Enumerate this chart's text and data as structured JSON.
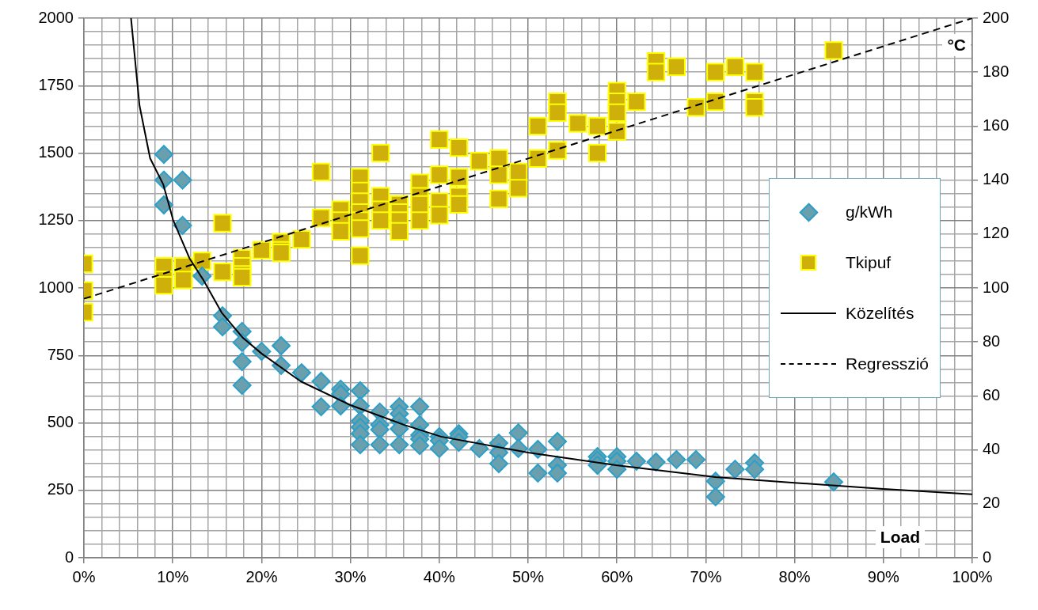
{
  "chart_data": {
    "type": "scatter",
    "xlabel": "Load",
    "y2label": "°C",
    "legend": "right",
    "grid": true,
    "xlim": [
      0,
      1
    ],
    "ylim": [
      0,
      2000
    ],
    "y2lim": [
      0,
      200
    ],
    "xticks": [
      {
        "value": 0,
        "label": "0%"
      },
      {
        "value": 0.02,
        "label": null
      },
      {
        "value": 0.04,
        "label": null
      },
      {
        "value": 0.06,
        "label": null
      },
      {
        "value": 0.08,
        "label": null
      },
      {
        "value": 0.1,
        "label": "10%"
      },
      {
        "value": 0.12,
        "label": null
      },
      {
        "value": 0.14,
        "label": null
      },
      {
        "value": 0.16,
        "label": null
      },
      {
        "value": 0.18,
        "label": null
      },
      {
        "value": 0.2,
        "label": "20%"
      },
      {
        "value": 0.22,
        "label": null
      },
      {
        "value": 0.24,
        "label": null
      },
      {
        "value": 0.26,
        "label": null
      },
      {
        "value": 0.28,
        "label": null
      },
      {
        "value": 0.3,
        "label": "30%"
      },
      {
        "value": 0.32,
        "label": null
      },
      {
        "value": 0.34,
        "label": null
      },
      {
        "value": 0.36,
        "label": null
      },
      {
        "value": 0.38,
        "label": null
      },
      {
        "value": 0.4,
        "label": "40%"
      },
      {
        "value": 0.42,
        "label": null
      },
      {
        "value": 0.44,
        "label": null
      },
      {
        "value": 0.46,
        "label": null
      },
      {
        "value": 0.48,
        "label": null
      },
      {
        "value": 0.5,
        "label": "50%"
      },
      {
        "value": 0.52,
        "label": null
      },
      {
        "value": 0.54,
        "label": null
      },
      {
        "value": 0.56,
        "label": null
      },
      {
        "value": 0.58,
        "label": null
      },
      {
        "value": 0.6,
        "label": "60%"
      },
      {
        "value": 0.62,
        "label": null
      },
      {
        "value": 0.64,
        "label": null
      },
      {
        "value": 0.66,
        "label": null
      },
      {
        "value": 0.68,
        "label": null
      },
      {
        "value": 0.7,
        "label": "70%"
      },
      {
        "value": 0.72,
        "label": null
      },
      {
        "value": 0.74,
        "label": null
      },
      {
        "value": 0.76,
        "label": null
      },
      {
        "value": 0.78,
        "label": null
      },
      {
        "value": 0.8,
        "label": "80%"
      },
      {
        "value": 0.82,
        "label": null
      },
      {
        "value": 0.84,
        "label": null
      },
      {
        "value": 0.86,
        "label": null
      },
      {
        "value": 0.88,
        "label": null
      },
      {
        "value": 0.9,
        "label": "90%"
      },
      {
        "value": 0.92,
        "label": null
      },
      {
        "value": 0.94,
        "label": null
      },
      {
        "value": 0.96,
        "label": null
      },
      {
        "value": 0.98,
        "label": null
      },
      {
        "value": 1,
        "label": "100%"
      }
    ],
    "yticks": [
      0,
      {
        "value": 50,
        "label": null
      },
      {
        "value": 100,
        "label": null
      },
      {
        "value": 150,
        "label": null
      },
      {
        "value": 200,
        "label": null
      },
      250,
      {
        "value": 300,
        "label": null
      },
      {
        "value": 350,
        "label": null
      },
      {
        "value": 400,
        "label": null
      },
      {
        "value": 450,
        "label": null
      },
      500,
      {
        "value": 550,
        "label": null
      },
      {
        "value": 600,
        "label": null
      },
      {
        "value": 650,
        "label": null
      },
      {
        "value": 700,
        "label": null
      },
      750,
      {
        "value": 800,
        "label": null
      },
      {
        "value": 850,
        "label": null
      },
      {
        "value": 900,
        "label": null
      },
      {
        "value": 950,
        "label": null
      },
      1000,
      {
        "value": 1050,
        "label": null
      },
      {
        "value": 1100,
        "label": null
      },
      {
        "value": 1150,
        "label": null
      },
      {
        "value": 1200,
        "label": null
      },
      1250,
      {
        "value": 1300,
        "label": null
      },
      {
        "value": 1350,
        "label": null
      },
      {
        "value": 1400,
        "label": null
      },
      {
        "value": 1450,
        "label": null
      },
      1500,
      {
        "value": 1550,
        "label": null
      },
      {
        "value": 1600,
        "label": null
      },
      {
        "value": 1650,
        "label": null
      },
      {
        "value": 1700,
        "label": null
      },
      1750,
      {
        "value": 1800,
        "label": null
      },
      {
        "value": 1850,
        "label": null
      },
      {
        "value": 1900,
        "label": null
      },
      {
        "value": 1950,
        "label": null
      },
      2000
    ],
    "y2ticks": [
      0,
      20,
      40,
      60,
      80,
      100,
      120,
      140,
      160,
      180,
      200
    ],
    "series": [
      {
        "name": "g/kWh",
        "marker": "diamond",
        "color": "#6a9fae",
        "x": [
          0.09,
          0.09,
          0.09,
          0.111,
          0.111,
          0.133,
          0.156,
          0.156,
          0.178,
          0.178,
          0.178,
          0.178,
          0.2,
          0.222,
          0.222,
          0.245,
          0.267,
          0.267,
          0.289,
          0.289,
          0.289,
          0.311,
          0.311,
          0.311,
          0.311,
          0.311,
          0.311,
          0.333,
          0.333,
          0.333,
          0.333,
          0.355,
          0.355,
          0.355,
          0.355,
          0.355,
          0.378,
          0.378,
          0.378,
          0.378,
          0.378,
          0.4,
          0.4,
          0.4,
          0.422,
          0.422,
          0.422,
          0.445,
          0.467,
          0.467,
          0.467,
          0.489,
          0.489,
          0.511,
          0.511,
          0.533,
          0.533,
          0.533,
          0.578,
          0.578,
          0.578,
          0.6,
          0.6,
          0.6,
          0.622,
          0.644,
          0.667,
          0.689,
          0.711,
          0.711,
          0.733,
          0.755,
          0.755,
          0.844
        ],
        "values": [
          1495,
          1400,
          1308,
          1400,
          1232,
          1044,
          897,
          856,
          839,
          798,
          727,
          639,
          765,
          786,
          713,
          686,
          654,
          560,
          625,
          607,
          563,
          619,
          563,
          507,
          484,
          460,
          419,
          540,
          493,
          475,
          419,
          560,
          534,
          507,
          478,
          419,
          560,
          493,
          455,
          440,
          416,
          449,
          434,
          405,
          460,
          449,
          428,
          405,
          425,
          390,
          349,
          463,
          405,
          402,
          314,
          431,
          343,
          314,
          375,
          361,
          343,
          375,
          358,
          328,
          358,
          355,
          364,
          364,
          284,
          226,
          328,
          352,
          328,
          281
        ]
      },
      {
        "name": "Tkipuf",
        "marker": "square",
        "axis": "y2",
        "color": "#cfb00a",
        "x": [
          0,
          0,
          0,
          0.09,
          0.09,
          0.09,
          0.112,
          0.112,
          0.133,
          0.156,
          0.156,
          0.178,
          0.178,
          0.178,
          0.178,
          0.2,
          0.222,
          0.222,
          0.222,
          0.245,
          0.267,
          0.267,
          0.289,
          0.289,
          0.289,
          0.311,
          0.311,
          0.311,
          0.311,
          0.311,
          0.311,
          0.311,
          0.334,
          0.334,
          0.334,
          0.334,
          0.355,
          0.355,
          0.355,
          0.355,
          0.378,
          0.378,
          0.378,
          0.378,
          0.4,
          0.4,
          0.4,
          0.4,
          0.422,
          0.422,
          0.422,
          0.422,
          0.445,
          0.467,
          0.467,
          0.467,
          0.489,
          0.489,
          0.511,
          0.511,
          0.533,
          0.533,
          0.533,
          0.556,
          0.578,
          0.578,
          0.6,
          0.6,
          0.6,
          0.6,
          0.622,
          0.644,
          0.644,
          0.667,
          0.689,
          0.711,
          0.711,
          0.733,
          0.755,
          0.755,
          0.755,
          0.844
        ],
        "values": [
          109,
          99,
          91,
          108,
          103,
          101,
          108,
          103,
          110,
          124,
          106,
          111,
          108,
          105,
          104,
          114,
          117,
          114,
          113,
          118,
          143,
          126,
          129,
          125,
          121,
          141,
          136,
          132,
          128,
          125,
          122,
          112,
          150,
          134,
          129,
          125,
          131,
          128,
          125,
          121,
          139,
          134,
          131,
          125,
          155,
          142,
          132,
          127,
          152,
          141,
          134,
          131,
          147,
          148,
          142,
          133,
          143,
          137,
          160,
          148,
          169,
          165,
          151,
          161,
          160,
          150,
          173,
          169,
          165,
          158,
          169,
          184,
          180,
          182,
          167,
          180,
          169,
          182,
          180,
          169,
          167,
          188
        ]
      },
      {
        "name": "Közelítés",
        "type": "line",
        "marker": "none",
        "line_style": "solid",
        "color": "#000000",
        "x": [
          0.053,
          0.0626,
          0.0745,
          0.0894,
          0.1004,
          0.119,
          0.134,
          0.155,
          0.179,
          0.2,
          0.244,
          0.3,
          0.36,
          0.402,
          0.5,
          0.599,
          0.711,
          0.8,
          0.9,
          1
        ],
        "values": [
          2000,
          1676,
          1481,
          1383,
          1252,
          1109,
          1032,
          909,
          815,
          757,
          654,
          566,
          493,
          449,
          390,
          343,
          299,
          278,
          255,
          235
        ]
      },
      {
        "name": "Regresszió",
        "type": "line",
        "marker": "none",
        "line_style": "dashed",
        "axis": "y2",
        "color": "#000000",
        "x": [
          0,
          1
        ],
        "values": [
          96,
          200
        ]
      }
    ]
  }
}
